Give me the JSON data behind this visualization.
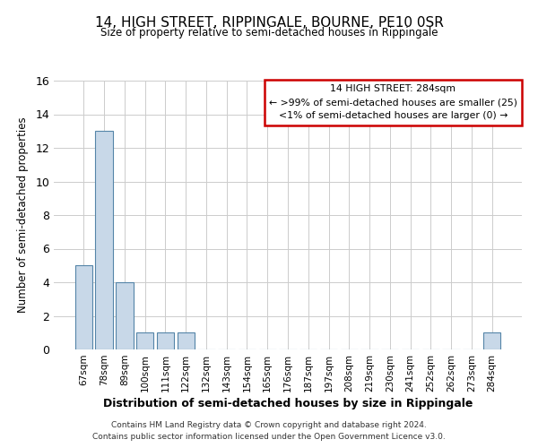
{
  "title": "14, HIGH STREET, RIPPINGALE, BOURNE, PE10 0SR",
  "subtitle": "Size of property relative to semi-detached houses in Rippingale",
  "xlabel": "Distribution of semi-detached houses by size in Rippingale",
  "ylabel": "Number of semi-detached properties",
  "bar_color": "#c8d8e8",
  "bar_edge_color": "#5585a8",
  "categories": [
    "67sqm",
    "78sqm",
    "89sqm",
    "100sqm",
    "111sqm",
    "122sqm",
    "132sqm",
    "143sqm",
    "154sqm",
    "165sqm",
    "176sqm",
    "187sqm",
    "197sqm",
    "208sqm",
    "219sqm",
    "230sqm",
    "241sqm",
    "252sqm",
    "262sqm",
    "273sqm",
    "284sqm"
  ],
  "values": [
    5,
    13,
    4,
    1,
    1,
    1,
    0,
    0,
    0,
    0,
    0,
    0,
    0,
    0,
    0,
    0,
    0,
    0,
    0,
    0,
    1
  ],
  "ylim": [
    0,
    16
  ],
  "yticks": [
    0,
    2,
    4,
    6,
    8,
    10,
    12,
    14,
    16
  ],
  "annotation_title": "14 HIGH STREET: 284sqm",
  "annotation_line1": "← >99% of semi-detached houses are smaller (25)",
  "annotation_line2": "<1% of semi-detached houses are larger (0) →",
  "box_edge_color": "#cc0000",
  "footer1": "Contains HM Land Registry data © Crown copyright and database right 2024.",
  "footer2": "Contains public sector information licensed under the Open Government Licence v3.0.",
  "background_color": "#ffffff",
  "grid_color": "#cccccc"
}
